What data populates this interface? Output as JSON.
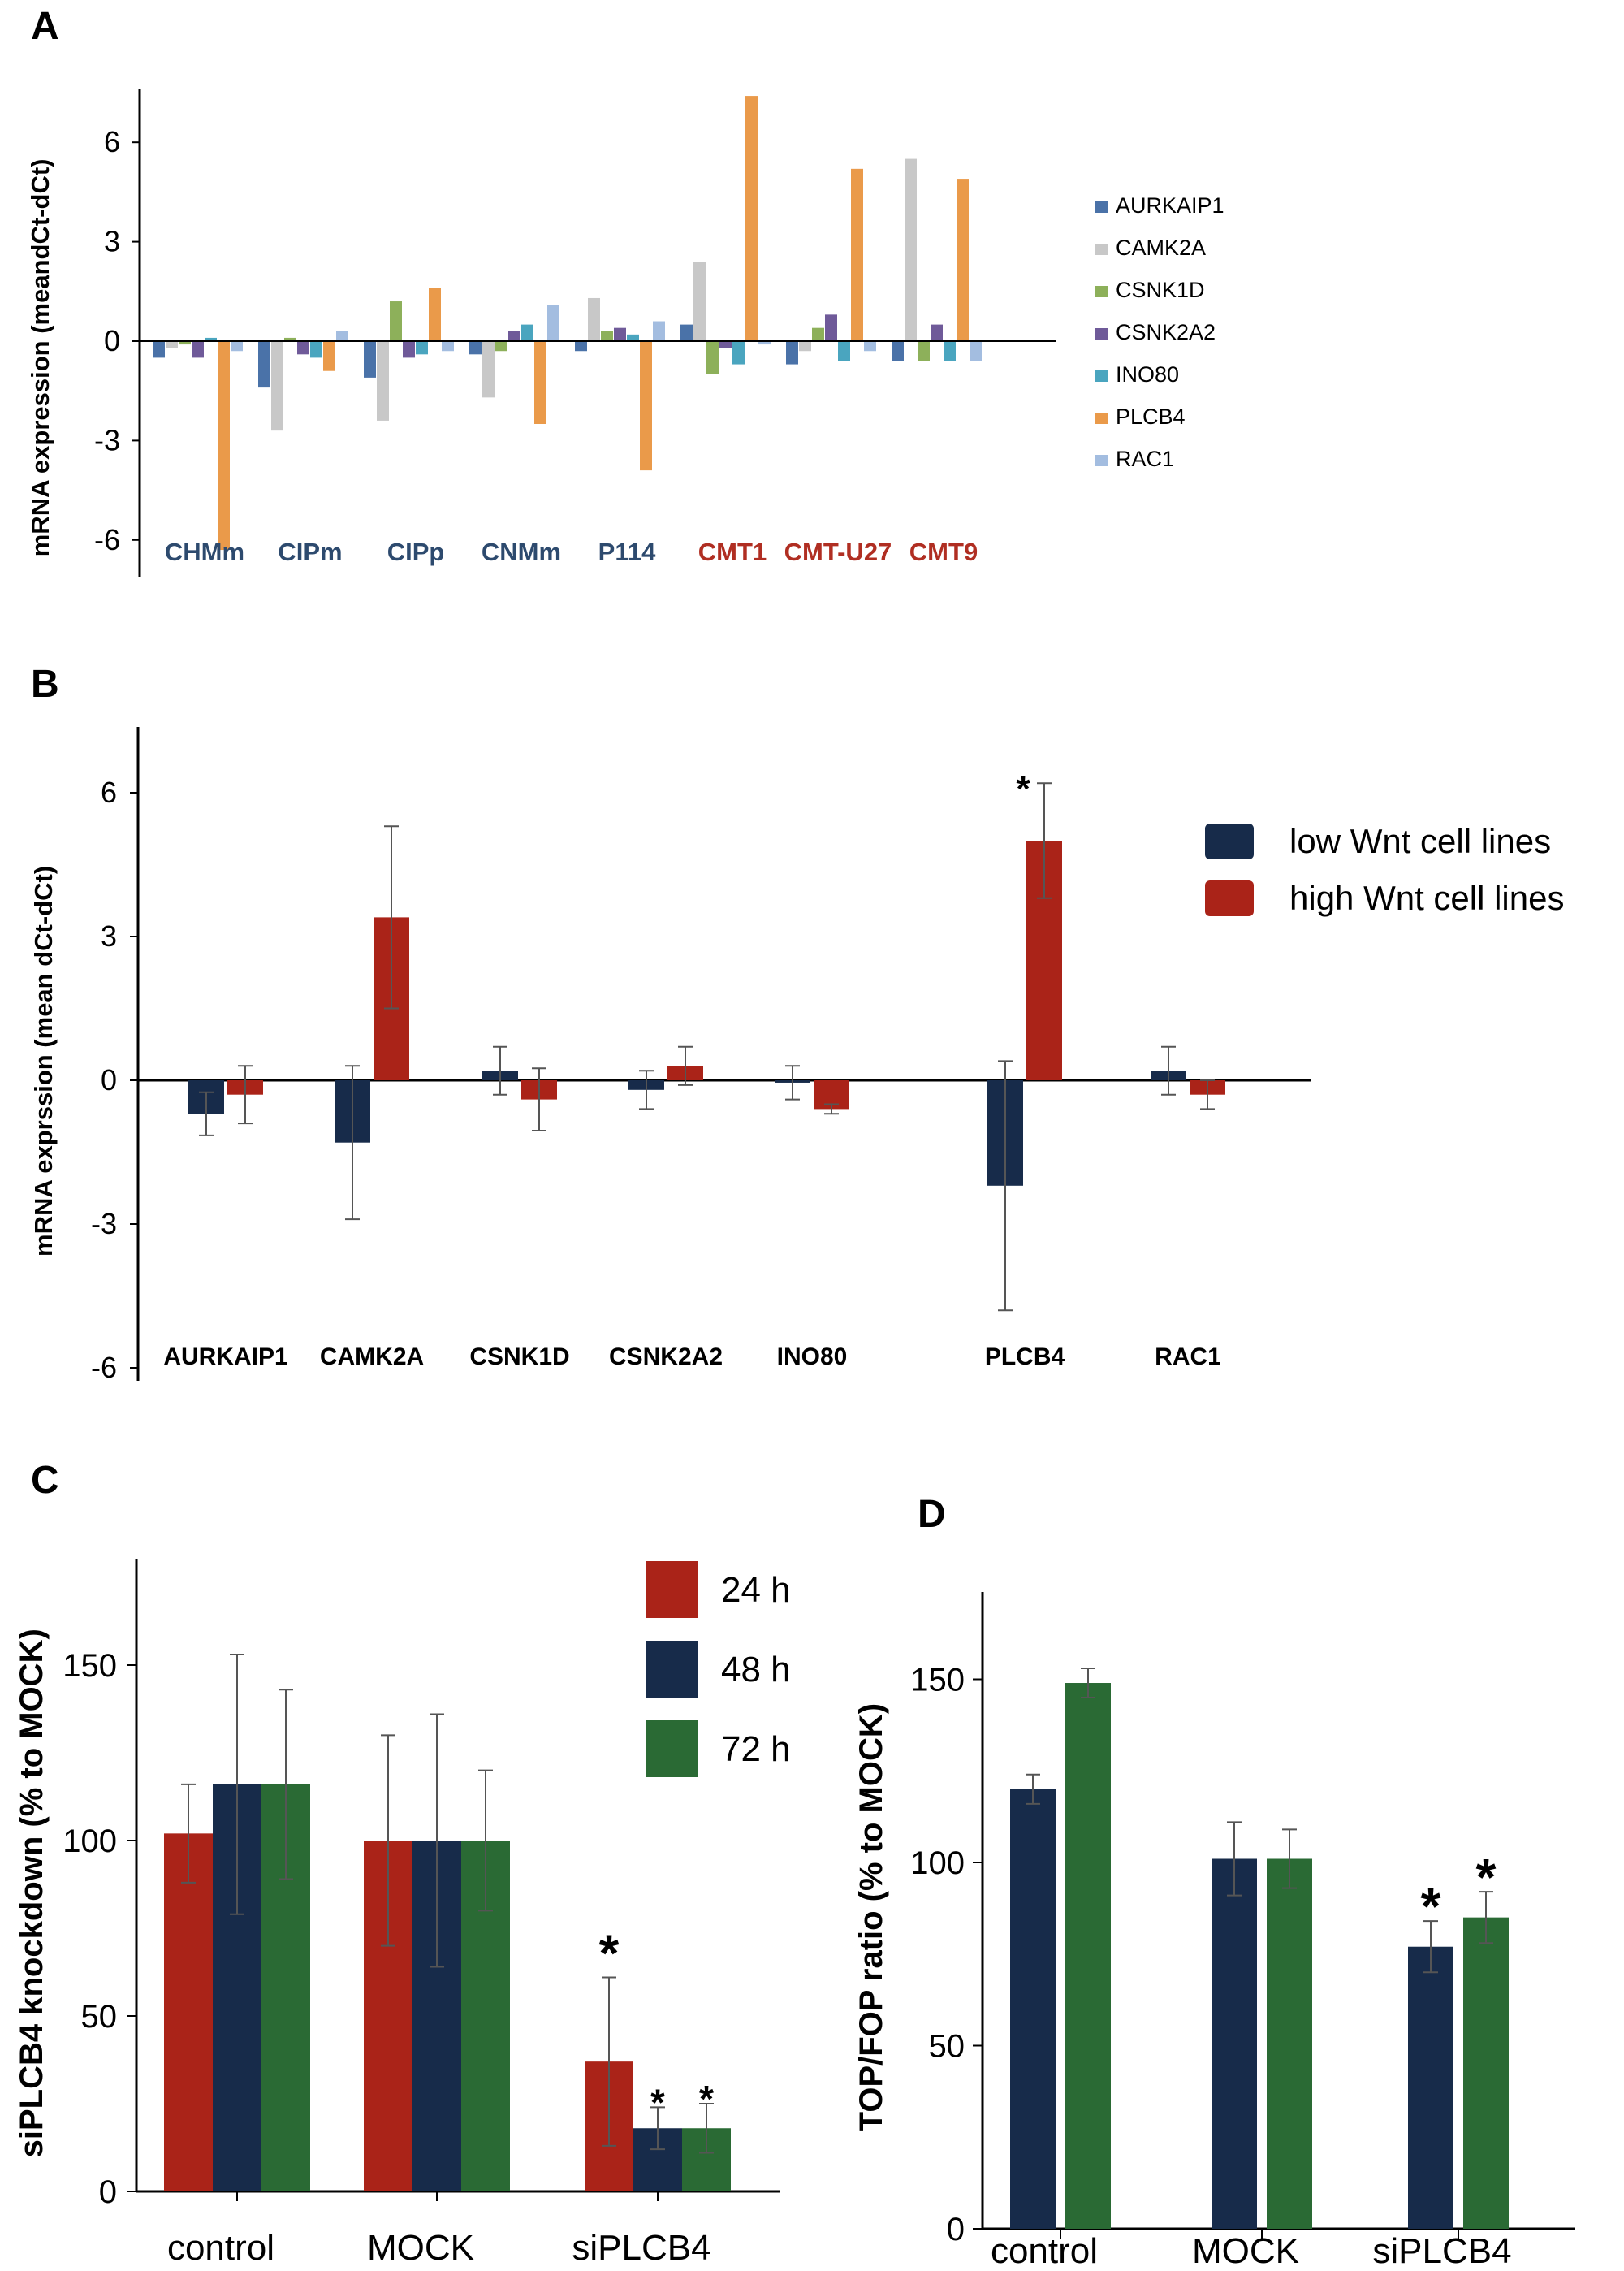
{
  "chart_data": [
    {
      "panel": "A",
      "type": "bar",
      "ylabel": "mRNA expression (meandCt-dCt)",
      "ylim": [
        -6.8,
        7.5
      ],
      "yticks": [
        6,
        3,
        0,
        -3,
        -6
      ],
      "categories": [
        "CHMm",
        "CIPm",
        "CIPp",
        "CNMm",
        "P114",
        "CMT1",
        "CMT-U27",
        "CMT9"
      ],
      "category_colors": [
        "#2d4a6e",
        "#2d4a6e",
        "#2d4a6e",
        "#2d4a6e",
        "#2d4a6e",
        "#b02e22",
        "#b02e22",
        "#b02e22"
      ],
      "series": [
        {
          "name": "AURKAIP1",
          "color": "#4a72a8",
          "values": [
            -0.5,
            -1.4,
            -1.1,
            -0.4,
            -0.3,
            0.5,
            -0.7,
            -0.6
          ]
        },
        {
          "name": "CAMK2A",
          "color": "#c8c8c8",
          "values": [
            -0.2,
            -2.7,
            -2.4,
            -1.7,
            1.3,
            2.4,
            -0.3,
            5.5
          ]
        },
        {
          "name": "CSNK1D",
          "color": "#8db05a",
          "values": [
            -0.1,
            0.1,
            1.2,
            -0.3,
            0.3,
            -1.0,
            0.4,
            -0.6
          ]
        },
        {
          "name": "CSNK2A2",
          "color": "#6f5a99",
          "values": [
            -0.5,
            -0.4,
            -0.5,
            0.3,
            0.4,
            -0.2,
            0.8,
            0.5
          ]
        },
        {
          "name": "INO80",
          "color": "#4aa5bf",
          "values": [
            0.1,
            -0.5,
            -0.4,
            0.5,
            0.2,
            -0.7,
            -0.6,
            -0.6
          ]
        },
        {
          "name": "PLCB4",
          "color": "#ea9a4a",
          "values": [
            -6.3,
            -0.9,
            1.6,
            -2.5,
            -3.9,
            7.4,
            5.2,
            4.9
          ]
        },
        {
          "name": "RAC1",
          "color": "#a3bde0",
          "values": [
            -0.3,
            0.3,
            -0.3,
            1.1,
            0.6,
            -0.1,
            -0.3,
            -0.6
          ]
        }
      ]
    },
    {
      "panel": "B",
      "type": "bar",
      "ylabel": "mRNA exprssion (mean dCt-dCt)",
      "ylim": [
        -6.2,
        7.2
      ],
      "yticks": [
        6,
        3,
        0,
        -3,
        -6
      ],
      "categories": [
        "AURKAIP1",
        "CAMK2A",
        "CSNK1D",
        "CSNK2A2",
        "INO80",
        "PLCB4",
        "RAC1"
      ],
      "series": [
        {
          "name": "low Wnt cell lines",
          "color": "#172b4a",
          "values": [
            -0.7,
            -1.3,
            0.2,
            -0.2,
            -0.05,
            -2.2,
            0.2
          ],
          "errors": [
            0.45,
            1.6,
            0.5,
            0.4,
            0.35,
            2.6,
            0.5
          ]
        },
        {
          "name": "high Wnt cell lines",
          "color": "#aa2318",
          "values": [
            -0.3,
            3.4,
            -0.4,
            0.3,
            -0.6,
            5.0,
            -0.3
          ],
          "errors": [
            0.6,
            1.9,
            0.65,
            0.4,
            0.1,
            1.2,
            0.3
          ]
        }
      ],
      "annotations": [
        {
          "category": "PLCB4",
          "series": "low Wnt cell lines",
          "text": "*"
        }
      ]
    },
    {
      "panel": "C",
      "type": "bar",
      "ylabel": "siPLCB4 knockdown (% to MOCK)",
      "ylim": [
        0,
        165
      ],
      "yticks": [
        0,
        50,
        100,
        150
      ],
      "categories": [
        "control",
        "MOCK",
        "siPLCB4"
      ],
      "series": [
        {
          "name": "24 h",
          "color": "#aa2318",
          "values": [
            102,
            100,
            37
          ],
          "errors": [
            14,
            30,
            24
          ]
        },
        {
          "name": "48 h",
          "color": "#172b4a",
          "values": [
            116,
            100,
            18
          ],
          "errors": [
            37,
            36,
            6
          ]
        },
        {
          "name": "72 h",
          "color": "#2a6a34",
          "values": [
            116,
            100,
            18
          ],
          "errors": [
            27,
            20,
            7
          ]
        }
      ],
      "annotations": [
        {
          "category": "siPLCB4",
          "series": "24 h",
          "text": "*"
        },
        {
          "category": "siPLCB4",
          "series": "48 h",
          "text": "*"
        },
        {
          "category": "siPLCB4",
          "series": "72 h",
          "text": "*"
        }
      ]
    },
    {
      "panel": "D",
      "type": "bar",
      "ylabel": "TOP/FOP ratio (% to MOCK)",
      "ylim": [
        0,
        165
      ],
      "yticks": [
        0,
        50,
        100,
        150
      ],
      "categories": [
        "control",
        "MOCK",
        "siPLCB4"
      ],
      "series": [
        {
          "name": "",
          "color": "#172b4a",
          "values": [
            120,
            101,
            77
          ],
          "errors": [
            4,
            10,
            7
          ]
        },
        {
          "name": "",
          "color": "#2a6a34",
          "values": [
            149,
            101,
            85
          ],
          "errors": [
            4,
            8,
            7
          ]
        }
      ],
      "annotations": [
        {
          "category": "siPLCB4",
          "series": 0,
          "text": "*"
        },
        {
          "category": "siPLCB4",
          "series": 1,
          "text": "*"
        }
      ]
    }
  ]
}
